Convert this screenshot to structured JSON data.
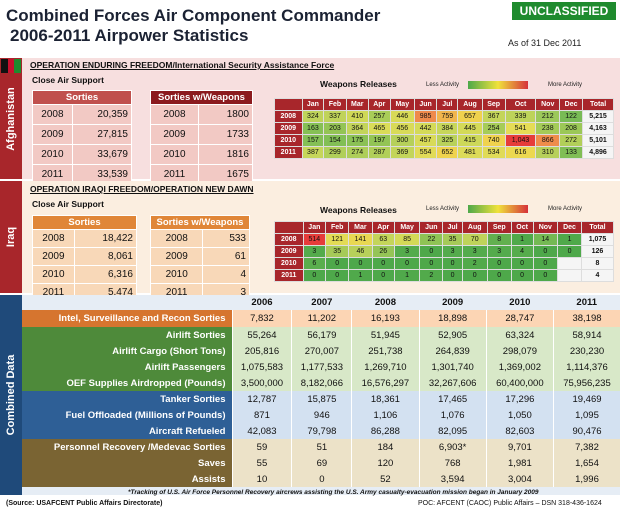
{
  "header": {
    "title_line1": "Combined Forces Air Component Commander",
    "title_line2": "2006-2011 Airpower Statistics",
    "classification": "UNCLASSIFIED",
    "as_of": "As of 31 Dec 2011"
  },
  "legend": {
    "less": "Less Activity",
    "more": "More Activity"
  },
  "afghanistan": {
    "side_label": "Afghanistan",
    "operation": "OPERATION ENDURING FREEDOM/International  Security Assistance Force",
    "cas_title": "Close Air Support",
    "sorties_header": "Sorties",
    "weapons_header": "Sorties w/Weapons",
    "releases_title": "Weapons Releases",
    "sorties": [
      [
        "2008",
        "20,359"
      ],
      [
        "2009",
        "27,815"
      ],
      [
        "2010",
        "33,679"
      ],
      [
        "2011",
        "33,539"
      ]
    ],
    "with_weapons": [
      [
        "2008",
        "1800"
      ],
      [
        "2009",
        "1733"
      ],
      [
        "2010",
        "1816"
      ],
      [
        "2011",
        "1675"
      ]
    ],
    "months": [
      "Jan",
      "Feb",
      "Mar",
      "Apr",
      "May",
      "Jun",
      "Jul",
      "Aug",
      "Sep",
      "Oct",
      "Nov",
      "Dec",
      "Total"
    ],
    "releases": [
      {
        "year": "2008",
        "cells": [
          "324",
          "337",
          "410",
          "257",
          "446",
          "985",
          "759",
          "657",
          "367",
          "339",
          "212",
          "122",
          "5,215"
        ]
      },
      {
        "year": "2009",
        "cells": [
          "163",
          "203",
          "364",
          "465",
          "456",
          "442",
          "384",
          "445",
          "254",
          "541",
          "238",
          "208",
          "4,163"
        ]
      },
      {
        "year": "2010",
        "cells": [
          "157",
          "154",
          "175",
          "197",
          "300",
          "457",
          "325",
          "415",
          "740",
          "1,043",
          "866",
          "272",
          "5,101"
        ]
      },
      {
        "year": "2011",
        "cells": [
          "387",
          "299",
          "274",
          "287",
          "369",
          "554",
          "652",
          "481",
          "534",
          "616",
          "310",
          "133",
          "4,896"
        ]
      }
    ],
    "colors": [
      [
        "#bfd35a",
        "#c0d35a",
        "#cfd857",
        "#a9cd58",
        "#d8da57",
        "#ef8a4b",
        "#f0b54d",
        "#efd14e",
        "#c4d55a",
        "#bdd35a",
        "#9cc85a",
        "#78bb55",
        "#f5f5f5"
      ],
      [
        "#86c055",
        "#94c455",
        "#c3d45a",
        "#dadc58",
        "#d9db58",
        "#d4da58",
        "#c7d65a",
        "#d4da58",
        "#a6cc58",
        "#e5dc56",
        "#a4cb58",
        "#9bc857",
        "#f5f5f5"
      ],
      [
        "#84bf55",
        "#82bf55",
        "#8bc155",
        "#93c455",
        "#b6d05a",
        "#d8da58",
        "#b9d15a",
        "#cdd859",
        "#f0d24e",
        "#e63c3a",
        "#ef8c4b",
        "#b2cf59",
        "#f5f5f5"
      ],
      [
        "#c6d65a",
        "#b0cf59",
        "#aece59",
        "#b1cf59",
        "#c3d55a",
        "#e1db58",
        "#efd34e",
        "#dcdb58",
        "#e0db58",
        "#ecd850",
        "#b7d05a",
        "#80be55",
        "#f5f5f5"
      ]
    ]
  },
  "iraq": {
    "side_label": "Iraq",
    "operation": "OPERATION IRAQI FREEDOM/OPERATION NEW DAWN",
    "cas_title": "Close Air Support",
    "sorties_header": "Sorties",
    "weapons_header": "Sorties w/Weapons",
    "releases_title": "Weapons Releases",
    "sorties": [
      [
        "2008",
        "18,422"
      ],
      [
        "2009",
        "8,061"
      ],
      [
        "2010",
        "6,316"
      ],
      [
        "2011",
        "5,474"
      ]
    ],
    "with_weapons": [
      [
        "2008",
        "533"
      ],
      [
        "2009",
        "61"
      ],
      [
        "2010",
        "4"
      ],
      [
        "2011",
        "3"
      ]
    ],
    "months": [
      "Jan",
      "Feb",
      "Mar",
      "Apr",
      "May",
      "Jun",
      "Jul",
      "Aug",
      "Sep",
      "Oct",
      "Nov",
      "Dec",
      "Total"
    ],
    "releases": [
      {
        "year": "2008",
        "cells": [
          "514",
          "121",
          "141",
          "63",
          "85",
          "22",
          "35",
          "70",
          "8",
          "1",
          "14",
          "1",
          "1,075"
        ]
      },
      {
        "year": "2009",
        "cells": [
          "3",
          "35",
          "46",
          "26",
          "3",
          "0",
          "3",
          "3",
          "3",
          "4",
          "0",
          "0",
          "126"
        ]
      },
      {
        "year": "2010",
        "cells": [
          "6",
          "0",
          "0",
          "0",
          "0",
          "0",
          "0",
          "2",
          "0",
          "0",
          "0",
          "",
          "8"
        ]
      },
      {
        "year": "2011",
        "cells": [
          "0",
          "0",
          "1",
          "0",
          "1",
          "2",
          "0",
          "0",
          "0",
          "0",
          "0",
          "",
          "4"
        ]
      }
    ],
    "colors": [
      [
        "#e63c3a",
        "#e3db55",
        "#e9d852",
        "#c4d55a",
        "#d3d957",
        "#8fc355",
        "#a6ca58",
        "#bfd35a",
        "#62b04f",
        "#4fa94a",
        "#74b953",
        "#4fa94a",
        "#f5f5f5"
      ],
      [
        "#54ab4c",
        "#a6ca58",
        "#b7d05a",
        "#95c456",
        "#54ab4c",
        "#4ea84a",
        "#54ab4c",
        "#54ab4c",
        "#54ab4c",
        "#56ac4c",
        "#4ea84a",
        "#4ea84a",
        "#f5f5f5"
      ],
      [
        "#5aae4d",
        "#4ea84a",
        "#4ea84a",
        "#4ea84a",
        "#4ea84a",
        "#4ea84a",
        "#4ea84a",
        "#52aa4b",
        "#4ea84a",
        "#4ea84a",
        "#4ea84a",
        "#f5f5f5",
        "#f5f5f5"
      ],
      [
        "#4ea84a",
        "#4ea84a",
        "#50a94b",
        "#4ea84a",
        "#50a94b",
        "#52aa4b",
        "#4ea84a",
        "#4ea84a",
        "#4ea84a",
        "#4ea84a",
        "#4ea84a",
        "#f5f5f5",
        "#f5f5f5"
      ]
    ]
  },
  "combined": {
    "side_label": "Combined Data",
    "years": [
      "2006",
      "2007",
      "2008",
      "2009",
      "2010",
      "2011"
    ],
    "rows": [
      {
        "label": "Intel, Surveillance and Recon Sorties",
        "values": [
          "7,832",
          "11,202",
          "16,193",
          "18,898",
          "28,747",
          "38,198"
        ],
        "group": "isr"
      },
      {
        "label": "Airlift Sorties",
        "values": [
          "55,264",
          "56,179",
          "51,945",
          "52,905",
          "63,324",
          "58,914"
        ],
        "group": "airlift"
      },
      {
        "label": "Airlift Cargo (Short Tons)",
        "values": [
          "205,816",
          "270,007",
          "251,738",
          "264,839",
          "298,079",
          "230,230"
        ],
        "group": "airlift"
      },
      {
        "label": "Airlift Passengers",
        "values": [
          "1,075,583",
          "1,177,533",
          "1,269,710",
          "1,301,740",
          "1,369,002",
          "1,114,376"
        ],
        "group": "airlift"
      },
      {
        "label": "OEF Supplies Airdropped (Pounds)",
        "values": [
          "3,500,000",
          "8,182,066",
          "16,576,297",
          "32,267,606",
          "60,400,000",
          "75,956,235"
        ],
        "group": "airlift"
      },
      {
        "label": "Tanker Sorties",
        "values": [
          "12,787",
          "15,875",
          "18,361",
          "17,465",
          "17,296",
          "19,469"
        ],
        "group": "tanker"
      },
      {
        "label": "Fuel Offloaded (Millions of Pounds)",
        "values": [
          "871",
          "946",
          "1,106",
          "1,076",
          "1,050",
          "1,095"
        ],
        "group": "tanker"
      },
      {
        "label": "Aircraft Refueled",
        "values": [
          "42,083",
          "79,798",
          "86,288",
          "82,095",
          "82,603",
          "90,476"
        ],
        "group": "tanker"
      },
      {
        "label": "Personnel Recovery /Medevac Sorties",
        "values": [
          "59",
          "51",
          "184",
          "6,903*",
          "9,701",
          "7,382"
        ],
        "group": "pr"
      },
      {
        "label": "Saves",
        "values": [
          "55",
          "69",
          "120",
          "768",
          "1,981",
          "1,654"
        ],
        "group": "pr"
      },
      {
        "label": "Assists",
        "values": [
          "10",
          "0",
          "52",
          "3,594",
          "3,004",
          "1,996"
        ],
        "group": "pr"
      }
    ]
  },
  "footer": {
    "note": "*Tracking of U.S. Air Force Personnel Recovery aircrews assisting the U.S. Army casualty-evacuation  mission began in January 2009",
    "source": "(Source: USAFCENT  Public Affairs Directorate)",
    "poc": "POC: AFCENT  (CAOC) Public Affairs – DSN  318-436-1624"
  }
}
